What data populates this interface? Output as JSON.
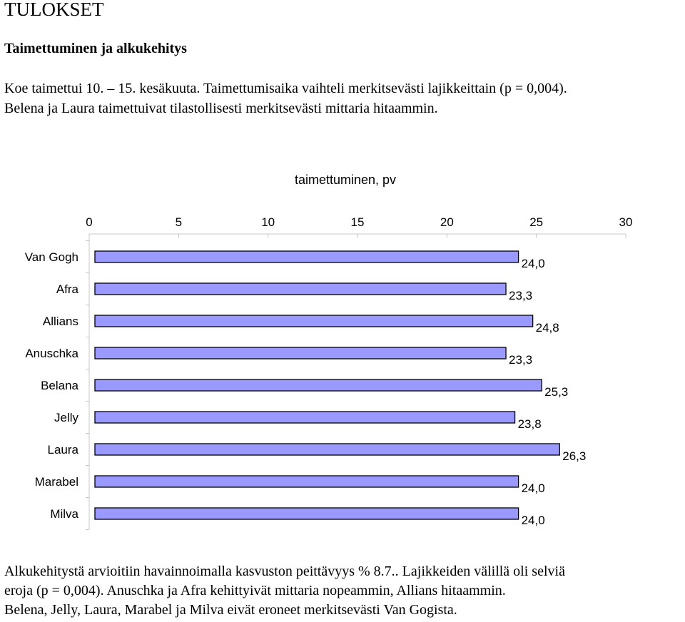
{
  "heading": "TULOKSET",
  "subheading": "Taimettuminen ja alkukehitys",
  "intro_lines": [
    "Koe taimettui 10. – 15. kesäkuuta. Taimettumisaika vaihteli merkitsevästi lajikkeittain (p = 0,004).",
    "Belena ja Laura taimettuivat tilastollisesti merkitsevästi mittaria hitaammin."
  ],
  "chart_data": {
    "type": "bar",
    "orientation": "horizontal",
    "title": "taimettuminen, pv",
    "categories": [
      "Van Gogh",
      "Afra",
      "Allians",
      "Anuschka",
      "Belana",
      "Jelly",
      "Laura",
      "Marabel",
      "Milva"
    ],
    "values": [
      24.0,
      23.3,
      24.8,
      23.3,
      25.3,
      23.8,
      26.3,
      24.0,
      24.0
    ],
    "value_labels": [
      "24,0",
      "23,3",
      "24,8",
      "23,3",
      "25,3",
      "23,8",
      "26,3",
      "24,0",
      "24,0"
    ],
    "x_ticks": [
      "0",
      "5",
      "10",
      "15",
      "20",
      "25",
      "30"
    ],
    "xlim": [
      0,
      30
    ],
    "axis_position": "top",
    "bar_color": "#9999ff",
    "bar_edge_color": "#000000",
    "grid": false
  },
  "outro_lines": [
    "Alkukehitystä arvioitiin havainnoimalla kasvuston peittävyys %  8.7.. Lajikkeiden välillä oli selviä",
    "eroja  (p = 0,004).  Anuschka ja Afra kehittyivät mittaria nopeammin, Allians hitaammin.",
    "Belena, Jelly, Laura, Marabel ja Milva  eivät eroneet merkitsevästi Van Gogista."
  ]
}
